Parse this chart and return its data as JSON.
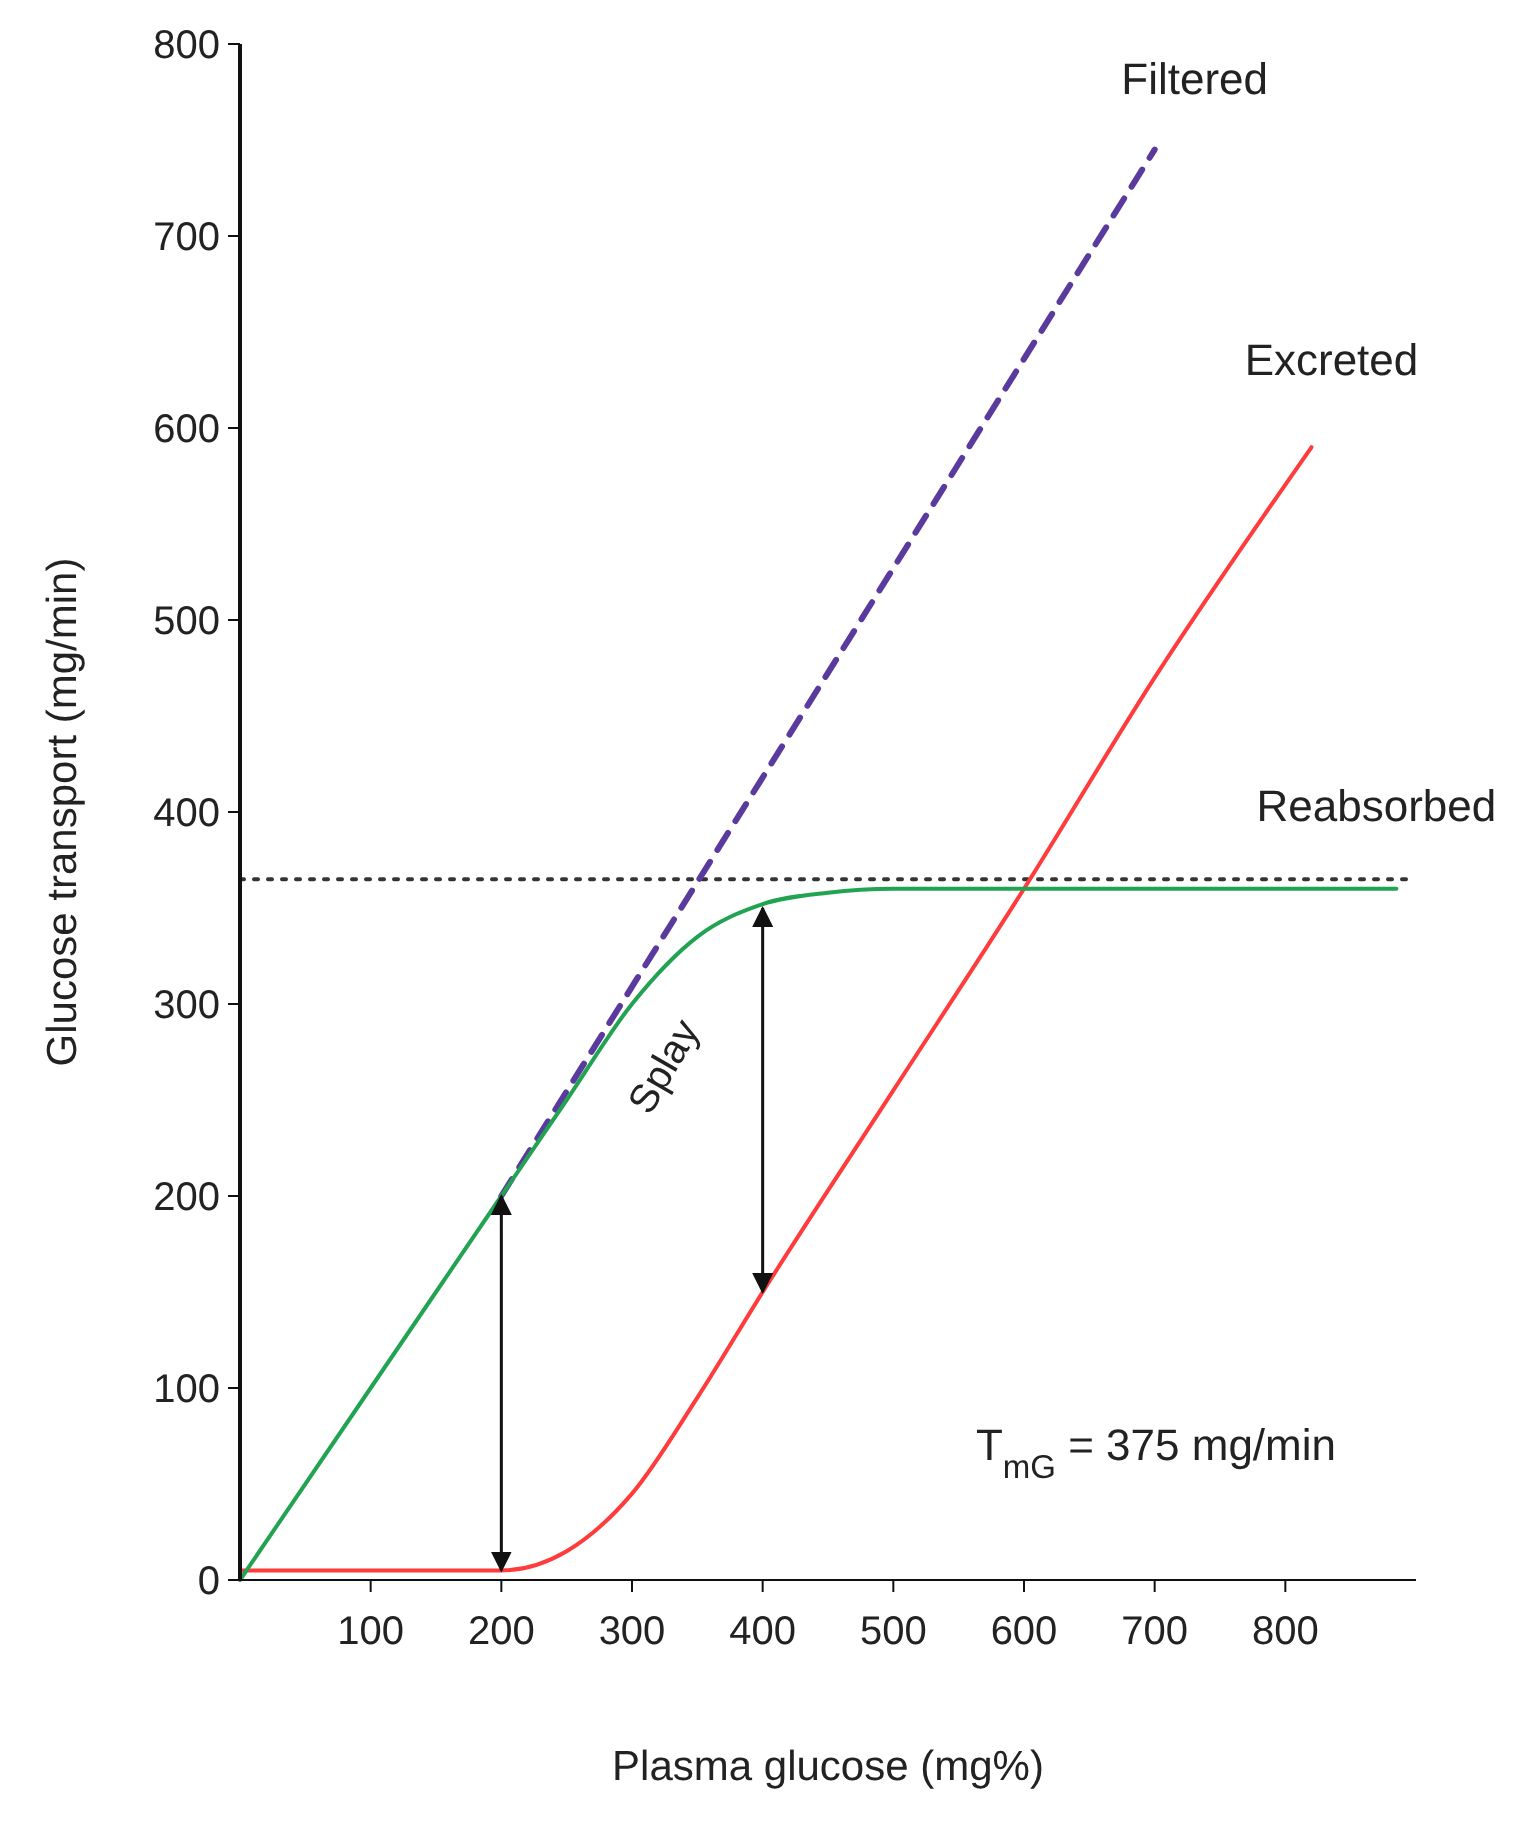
{
  "chart_data": {
    "type": "line",
    "xlabel": "Plasma glucose (mg%)",
    "ylabel": "Glucose transport (mg/min)",
    "xlim": [
      0,
      900
    ],
    "ylim": [
      0,
      800
    ],
    "xticks": [
      100,
      200,
      300,
      400,
      500,
      600,
      700,
      800
    ],
    "yticks": [
      0,
      100,
      200,
      300,
      400,
      500,
      600,
      700,
      800
    ],
    "grid": false,
    "series": [
      {
        "name": "Filtered",
        "color": "#5b3a9e",
        "line_style": "dashed",
        "x": [
          200,
          700
        ],
        "values": [
          200,
          745
        ]
      },
      {
        "name": "Excreted",
        "color": "#ff3b3b",
        "x": [
          0,
          200,
          250,
          300,
          350,
          400,
          500,
          600,
          700,
          820
        ],
        "values": [
          5,
          5,
          15,
          45,
          95,
          150,
          255,
          360,
          470,
          590
        ]
      },
      {
        "name": "Reabsorbed",
        "color": "#22a352",
        "x": [
          0,
          100,
          200,
          250,
          300,
          350,
          400,
          450,
          500,
          600,
          885
        ],
        "values": [
          0,
          100,
          200,
          250,
          300,
          335,
          352,
          358,
          360,
          360,
          360
        ]
      }
    ],
    "ref_lines": [
      {
        "axis": "y",
        "value": 365,
        "line_style": "dotted",
        "color": "#333333"
      }
    ],
    "annotations": [
      "Splay",
      "T$_{mG}$ = 375 mg/min"
    ]
  }
}
